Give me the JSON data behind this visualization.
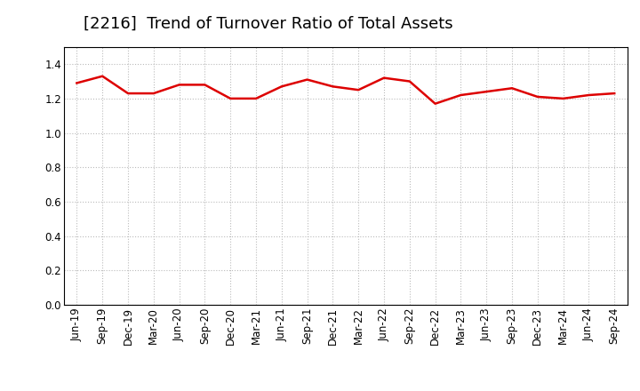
{
  "title": "[2216]  Trend of Turnover Ratio of Total Assets",
  "line_color": "#dd0000",
  "line_width": 1.8,
  "background_color": "#ffffff",
  "ylim": [
    0.0,
    1.5
  ],
  "yticks": [
    0.0,
    0.2,
    0.4,
    0.6,
    0.8,
    1.0,
    1.2,
    1.4
  ],
  "labels": [
    "Jun-19",
    "Sep-19",
    "Dec-19",
    "Mar-20",
    "Jun-20",
    "Sep-20",
    "Dec-20",
    "Mar-21",
    "Jun-21",
    "Sep-21",
    "Dec-21",
    "Mar-22",
    "Jun-22",
    "Sep-22",
    "Dec-22",
    "Mar-23",
    "Jun-23",
    "Sep-23",
    "Dec-23",
    "Mar-24",
    "Jun-24",
    "Sep-24"
  ],
  "values": [
    1.29,
    1.33,
    1.23,
    1.23,
    1.28,
    1.28,
    1.2,
    1.2,
    1.27,
    1.31,
    1.27,
    1.25,
    1.32,
    1.3,
    1.17,
    1.22,
    1.24,
    1.26,
    1.21,
    1.2,
    1.22,
    1.23
  ],
  "grid_color": "#bbbbbb",
  "title_fontsize": 13,
  "tick_fontsize": 8.5
}
